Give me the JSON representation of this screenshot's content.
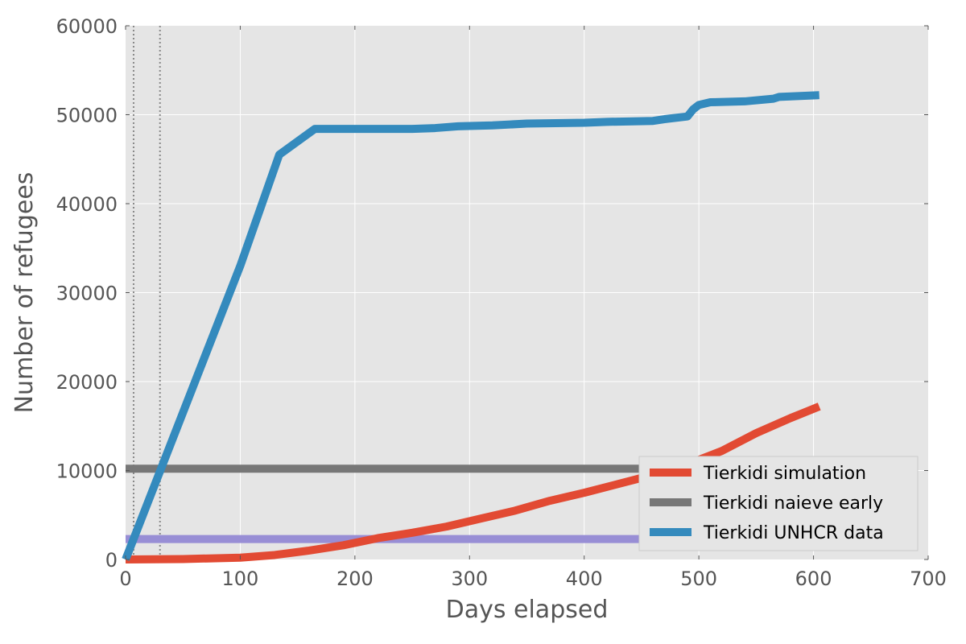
{
  "chart_data": {
    "type": "line",
    "title": "",
    "xlabel": "Days elapsed",
    "ylabel": "Number of refugees",
    "xlim": [
      0,
      700
    ],
    "ylim": [
      0,
      60000
    ],
    "xticks": [
      0,
      100,
      200,
      300,
      400,
      500,
      600,
      700
    ],
    "yticks": [
      0,
      10000,
      20000,
      30000,
      40000,
      50000,
      60000
    ],
    "xtick_labels": [
      "0",
      "100",
      "200",
      "300",
      "400",
      "500",
      "600",
      "700"
    ],
    "ytick_labels": [
      "0",
      "10000",
      "20000",
      "30000",
      "40000",
      "50000",
      "60000"
    ],
    "grid": true,
    "legend_position": "lower-right",
    "vertical_markers": [
      7,
      30
    ],
    "series": [
      {
        "name": "Tierkidi simulation",
        "color": "#e24a33",
        "in_legend": true,
        "x": [
          0,
          50,
          100,
          130,
          160,
          190,
          220,
          250,
          280,
          310,
          340,
          370,
          400,
          430,
          460,
          490,
          520,
          550,
          580,
          605
        ],
        "y": [
          0,
          50,
          200,
          500,
          1000,
          1600,
          2400,
          3000,
          3700,
          4600,
          5500,
          6600,
          7500,
          8500,
          9500,
          10700,
          12200,
          14200,
          15900,
          17200
        ]
      },
      {
        "name": "Tierkidi naieve early",
        "color": "#777777",
        "in_legend": true,
        "x": [
          0,
          605
        ],
        "y": [
          10200,
          10200
        ]
      },
      {
        "name": "Tierkidi UNHCR data",
        "color": "#348abd",
        "in_legend": true,
        "x": [
          0,
          100,
          134,
          165,
          200,
          250,
          270,
          290,
          320,
          350,
          400,
          420,
          460,
          470,
          490,
          495,
          500,
          510,
          540,
          565,
          570,
          605
        ],
        "y": [
          0,
          33000,
          45500,
          48400,
          48400,
          48400,
          48500,
          48700,
          48800,
          49000,
          49100,
          49200,
          49300,
          49500,
          49800,
          50600,
          51100,
          51400,
          51500,
          51800,
          52000,
          52200
        ]
      },
      {
        "name": "",
        "color": "#988ed5",
        "in_legend": false,
        "x": [
          0,
          605
        ],
        "y": [
          2300,
          2300
        ]
      }
    ]
  }
}
